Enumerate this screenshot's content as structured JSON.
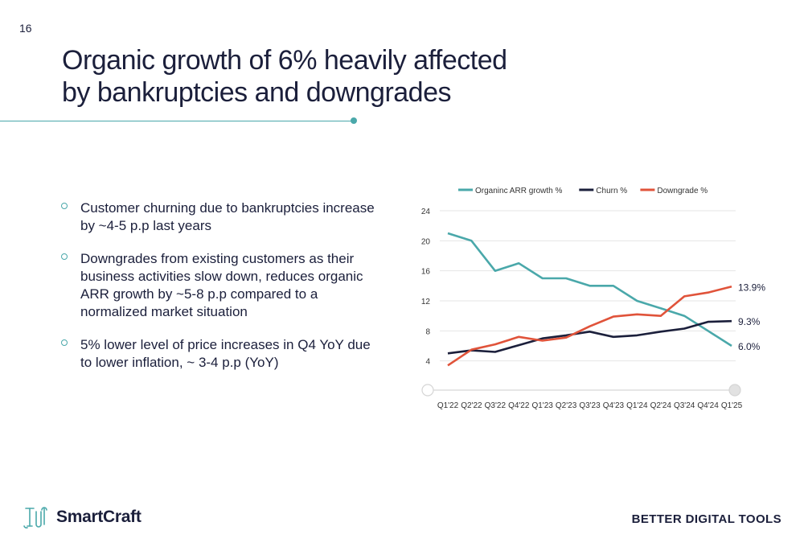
{
  "page_number": "16",
  "title_lines": [
    "Organic growth of 6% heavily affected",
    "by bankruptcies and downgrades"
  ],
  "bullets": [
    "Customer churning due to bankruptcies increase by ~4-5 p.p last years",
    "Downgrades from existing customers as their business activities slow down, reduces organic ARR growth by ~5-8 p.p compared to a normalized market situation",
    "5% lower level of price increases in Q4 YoY due to lower inflation, ~ 3-4 p.p (YoY)"
  ],
  "logo": {
    "name": "SmartCraft",
    "icon": "tools-logo-icon"
  },
  "tagline": "BETTER DIGITAL TOOLS",
  "colors": {
    "teal": "#4aa8aa",
    "navy": "#1b1f3b",
    "red": "#e0533a"
  },
  "chart_data": {
    "type": "line",
    "legend_position": "top",
    "grid": true,
    "ylim": [
      0,
      24
    ],
    "yticks": [
      4,
      8,
      12,
      16,
      20,
      24
    ],
    "categories": [
      "Q1'22",
      "Q2'22",
      "Q3'22",
      "Q4'22",
      "Q1'23",
      "Q2'23",
      "Q3'23",
      "Q4'23",
      "Q1'24",
      "Q2'24",
      "Q3'24",
      "Q4'24",
      "Q1'25"
    ],
    "series": [
      {
        "name": "Organinc ARR growth %",
        "color": "#4aa8aa",
        "values": [
          21,
          20,
          16,
          17,
          15,
          15,
          14,
          14,
          12,
          11,
          10,
          8,
          6.0
        ],
        "end_label": "6.0%"
      },
      {
        "name": "Churn %",
        "color": "#1b1f3b",
        "values": [
          5.0,
          5.4,
          5.2,
          6.1,
          7.0,
          7.4,
          7.9,
          7.2,
          7.4,
          7.9,
          8.3,
          9.2,
          9.3
        ],
        "end_label": "9.3%"
      },
      {
        "name": "Downgrade %",
        "color": "#e0533a",
        "values": [
          3.4,
          5.5,
          6.2,
          7.2,
          6.7,
          7.1,
          8.6,
          9.9,
          10.2,
          10.0,
          12.6,
          13.1,
          13.9
        ],
        "end_label": "13.9%"
      }
    ]
  }
}
